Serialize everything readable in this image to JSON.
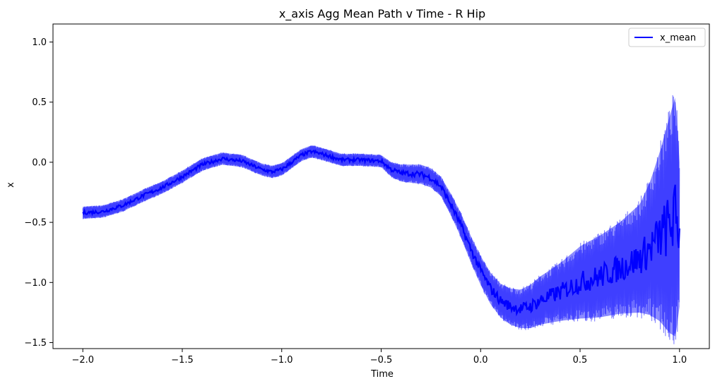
{
  "chart_data": {
    "type": "line",
    "title": "x_axis Agg Mean Path v Time - R Hip",
    "xlabel": "Time",
    "ylabel": "x",
    "xlim": [
      -2.15,
      1.15
    ],
    "ylim": [
      -1.55,
      1.15
    ],
    "xticks": [
      -2.0,
      -1.5,
      -1.0,
      -0.5,
      0.0,
      0.5,
      1.0
    ],
    "xtick_labels": [
      "−2.0",
      "−1.5",
      "−1.0",
      "−0.5",
      "0.0",
      "0.5",
      "1.0"
    ],
    "yticks": [
      -1.5,
      -1.0,
      -0.5,
      0.0,
      0.5,
      1.0
    ],
    "ytick_labels": [
      "−1.5",
      "−1.0",
      "−0.5",
      "0.0",
      "0.5",
      "1.0"
    ],
    "legend_position": "top-right",
    "grid": false,
    "series": [
      {
        "name": "x_mean",
        "color": "#0000ff",
        "band_color": "#0000ff",
        "x": [
          -2.0,
          -1.9,
          -1.8,
          -1.7,
          -1.6,
          -1.5,
          -1.4,
          -1.3,
          -1.2,
          -1.1,
          -1.05,
          -1.0,
          -0.9,
          -0.85,
          -0.8,
          -0.7,
          -0.6,
          -0.5,
          -0.45,
          -0.4,
          -0.3,
          -0.25,
          -0.2,
          -0.15,
          -0.1,
          -0.05,
          0.0,
          0.05,
          0.1,
          0.15,
          0.2,
          0.25,
          0.3,
          0.4,
          0.5,
          0.6,
          0.7,
          0.8,
          0.85,
          0.9,
          0.95,
          0.98,
          1.0
        ],
        "mean": [
          -0.42,
          -0.41,
          -0.36,
          -0.28,
          -0.21,
          -0.12,
          -0.02,
          0.03,
          0.01,
          -0.06,
          -0.08,
          -0.06,
          0.06,
          0.09,
          0.07,
          0.02,
          0.02,
          0.01,
          -0.06,
          -0.09,
          -0.1,
          -0.13,
          -0.2,
          -0.35,
          -0.52,
          -0.72,
          -0.9,
          -1.05,
          -1.15,
          -1.2,
          -1.22,
          -1.2,
          -1.15,
          -1.08,
          -1.0,
          -0.95,
          -0.88,
          -0.8,
          -0.72,
          -0.62,
          -0.52,
          -0.45,
          -0.6
        ],
        "band_halfwidth": [
          0.05,
          0.05,
          0.05,
          0.05,
          0.05,
          0.05,
          0.05,
          0.05,
          0.05,
          0.05,
          0.05,
          0.05,
          0.05,
          0.05,
          0.05,
          0.05,
          0.05,
          0.05,
          0.06,
          0.07,
          0.08,
          0.08,
          0.08,
          0.09,
          0.1,
          0.11,
          0.12,
          0.13,
          0.14,
          0.15,
          0.16,
          0.18,
          0.2,
          0.24,
          0.3,
          0.34,
          0.38,
          0.45,
          0.55,
          0.7,
          0.9,
          1.0,
          0.6
        ]
      }
    ]
  }
}
